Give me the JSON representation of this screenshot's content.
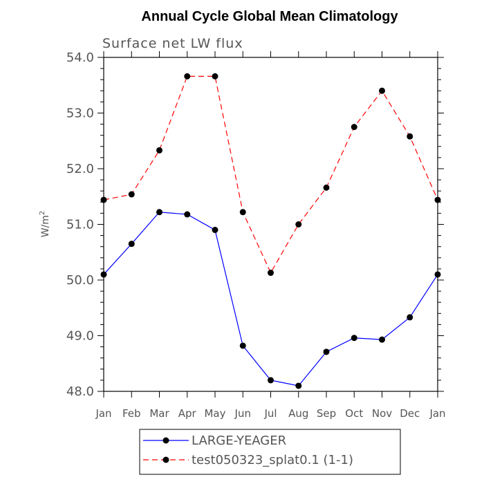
{
  "chart_data": {
    "type": "line",
    "title": "Annual Cycle Global Mean Climatology",
    "subtitle": "Surface net LW flux",
    "xlabel": "",
    "ylabel": "W/m",
    "ylabel_superscript": "2",
    "categories": [
      "Jan",
      "Feb",
      "Mar",
      "Apr",
      "May",
      "Jun",
      "Jul",
      "Aug",
      "Sep",
      "Oct",
      "Nov",
      "Dec",
      "Jan"
    ],
    "ylim": [
      48.0,
      54.0
    ],
    "yticks": [
      "48.0",
      "49.0",
      "50.0",
      "51.0",
      "52.0",
      "53.0",
      "54.0"
    ],
    "ytick_values": [
      48.0,
      49.0,
      50.0,
      51.0,
      52.0,
      53.0,
      54.0
    ],
    "grid": false,
    "legend_position": "bottom",
    "series": [
      {
        "name": "LARGE-YEAGER",
        "color": "#0000ff",
        "dash": "solid",
        "values": [
          50.1,
          50.65,
          51.22,
          51.18,
          50.9,
          48.82,
          48.2,
          48.1,
          48.71,
          48.96,
          48.93,
          49.33,
          50.1
        ]
      },
      {
        "name": "test050323_splat0.1 (1-1)",
        "color": "#ff0000",
        "dash": "dashed",
        "values": [
          51.44,
          51.54,
          52.33,
          53.66,
          53.66,
          51.22,
          50.13,
          51.0,
          51.66,
          52.75,
          53.4,
          52.58,
          51.44
        ]
      }
    ]
  }
}
